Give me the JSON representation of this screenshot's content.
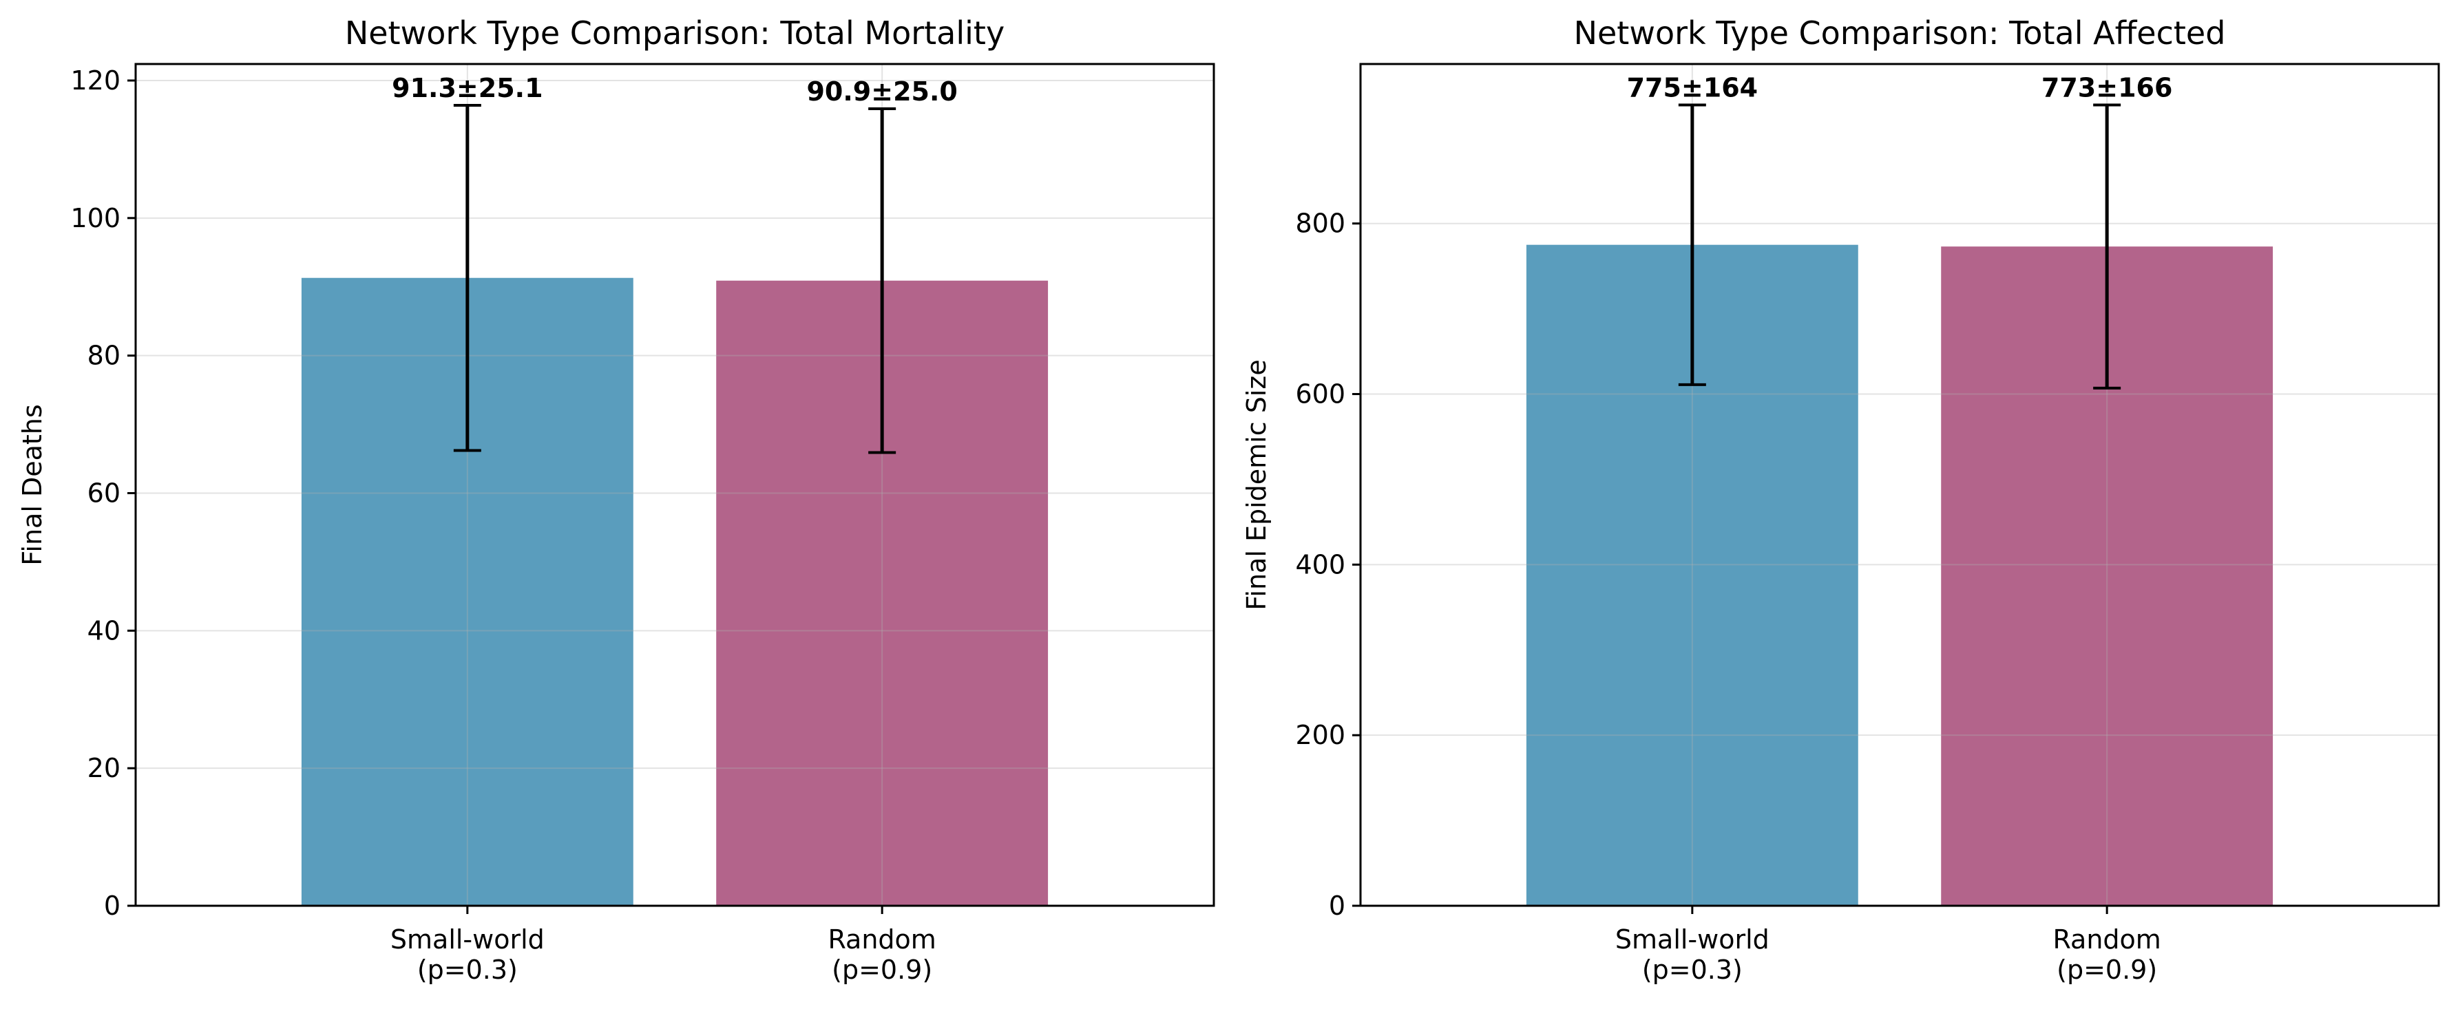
{
  "chart_data": [
    {
      "type": "bar",
      "title": "Network Type Comparison: Total Mortality",
      "xlabel": "",
      "ylabel": "Final Deaths",
      "categories": [
        "Small-world\n(p=0.3)",
        "Random\n(p=0.9)"
      ],
      "values": [
        91.3,
        90.9
      ],
      "errors": [
        25.1,
        25.0
      ],
      "data_labels": [
        "91.3±25.1",
        "90.9±25.0"
      ],
      "colors": [
        "#5a9dbd",
        "#b3648b"
      ],
      "ylim": [
        0,
        122.4
      ],
      "yticks": [
        0,
        20,
        40,
        60,
        80,
        100,
        120
      ],
      "grid": true
    },
    {
      "type": "bar",
      "title": "Network Type Comparison: Total Affected",
      "xlabel": "",
      "ylabel": "Final Epidemic Size",
      "categories": [
        "Small-world\n(p=0.3)",
        "Random\n(p=0.9)"
      ],
      "values": [
        775,
        773
      ],
      "errors": [
        164,
        166
      ],
      "data_labels": [
        "775±164",
        "773±166"
      ],
      "colors": [
        "#5a9dbd",
        "#b3648b"
      ],
      "ylim": [
        0,
        987
      ],
      "yticks": [
        0,
        200,
        400,
        600,
        800
      ],
      "grid": true
    }
  ]
}
